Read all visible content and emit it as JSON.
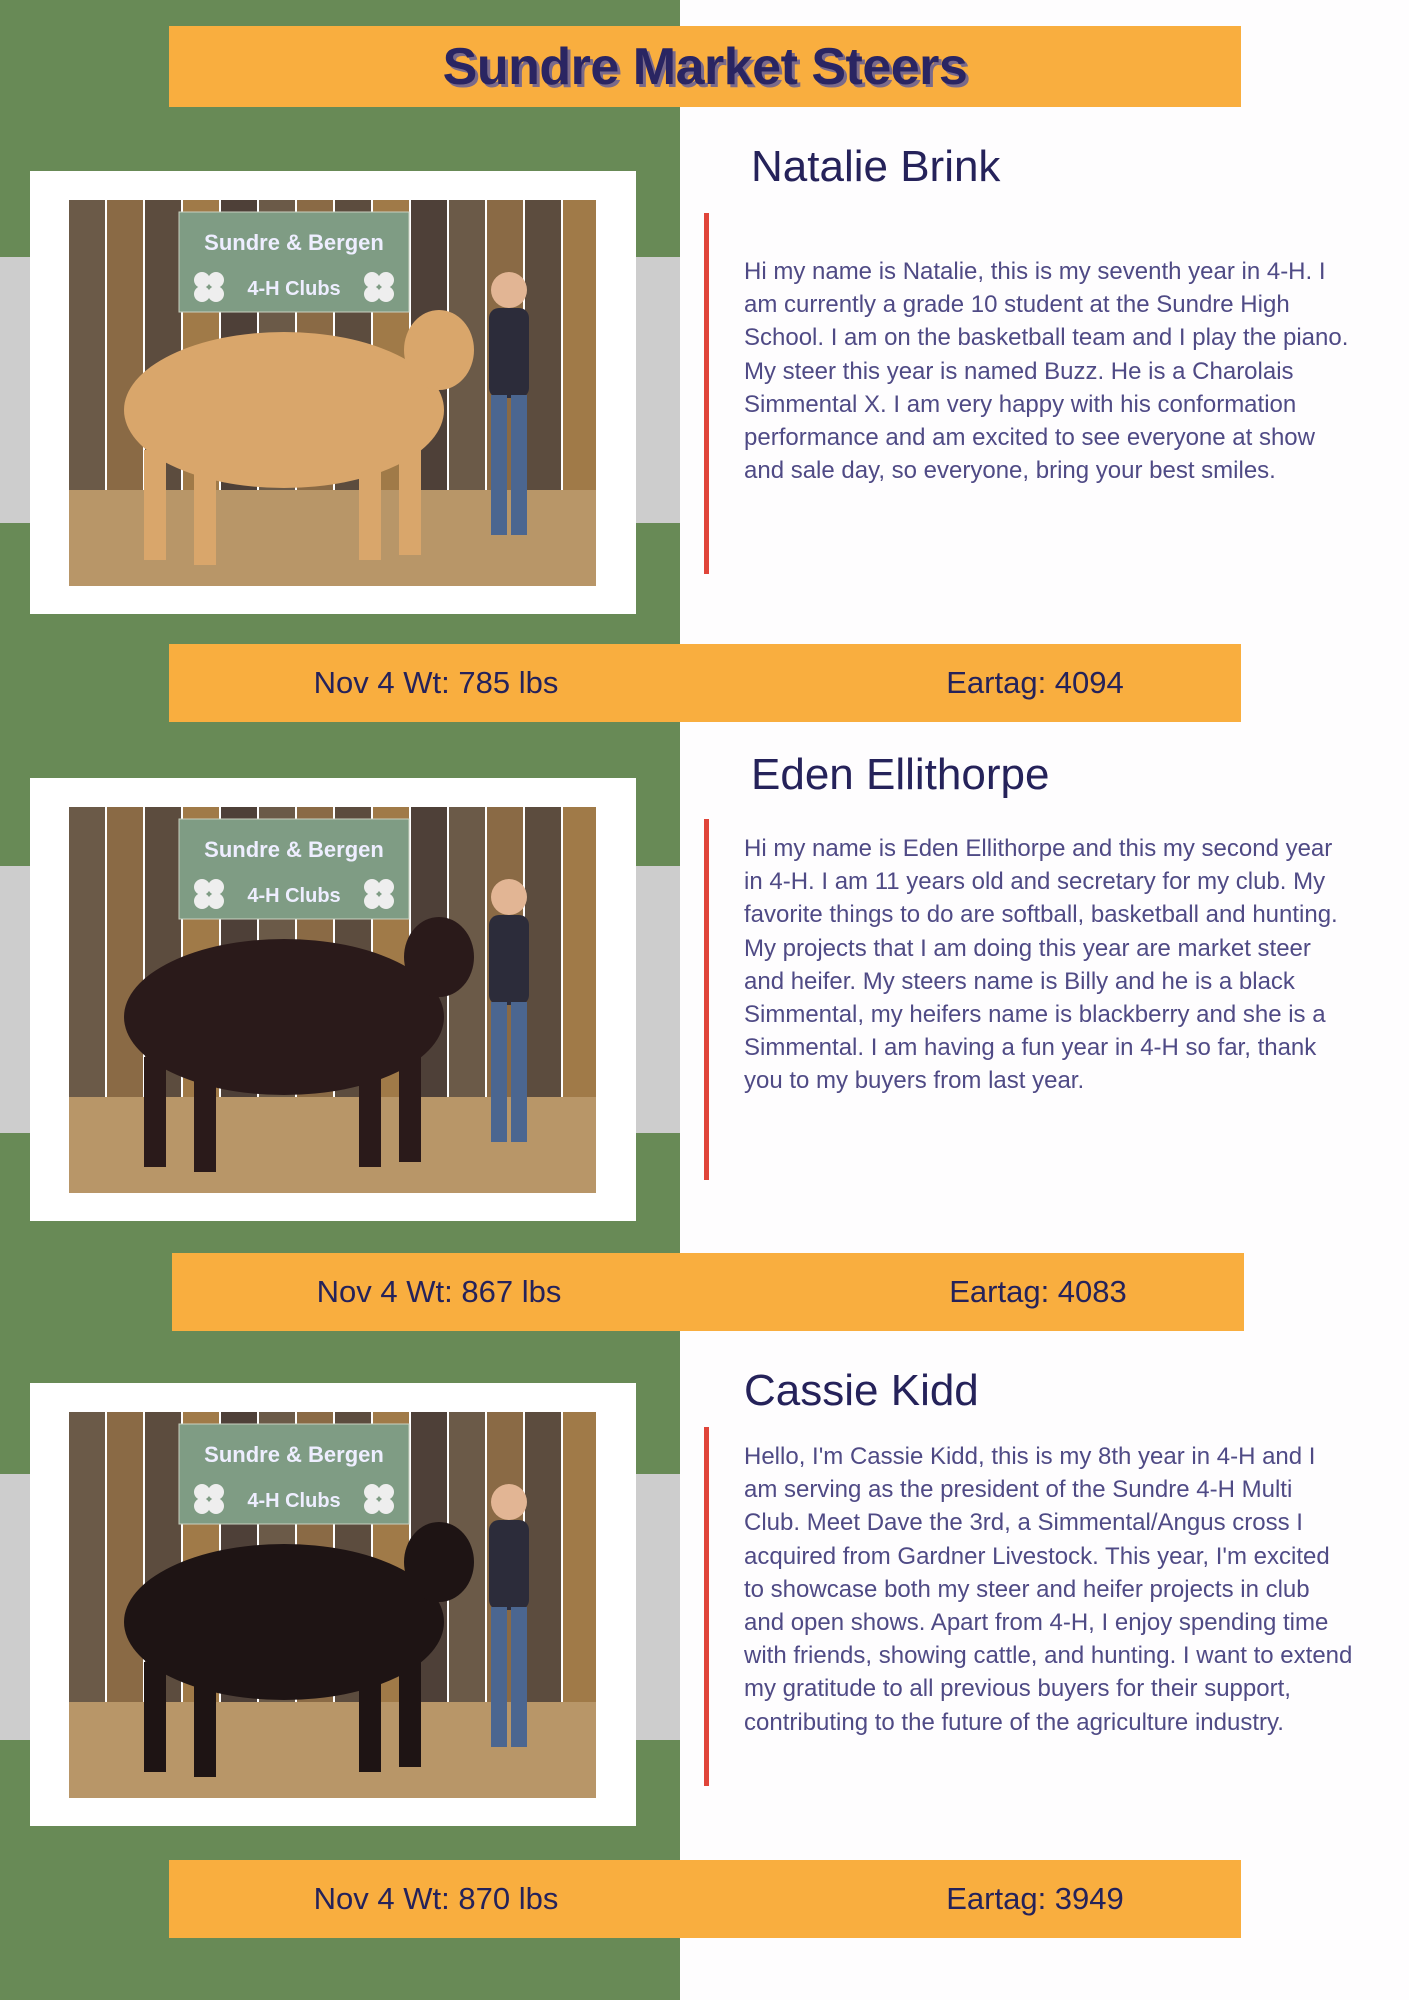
{
  "title": "Sundre Market Steers",
  "colors": {
    "green": "#688a56",
    "orange": "#f9ae3f",
    "navy": "#25225a",
    "red": "#e0453a",
    "gray": "#cdcdcd"
  },
  "members": [
    {
      "name": "Natalie Brink",
      "bio": "Hi my name is Natalie, this is my seventh year in 4-H. I am currently a grade 10 student at the Sundre High School. I am on the basketball team and I play the piano. My steer this year is named Buzz. He is a Charolais Simmental X. I am very happy with his conformation performance and am excited to see everyone at show and sale day, so everyone, bring your best smiles.",
      "weight": "Nov 4 Wt: 785 lbs",
      "eartag": "Eartag: 4094",
      "banner": [
        "Sundre & Bergen",
        "4-H Clubs"
      ],
      "steer_color": "#d9a66b"
    },
    {
      "name": "Eden Ellithorpe",
      "bio": "Hi my name is Eden Ellithorpe and this my second year in 4-H. I am 11 years old and secretary for my club. My favorite things to do are softball, basketball and hunting. My projects that I am doing this year are market steer and heifer. My steers name is Billy and he is a black Simmental, my heifers name is blackberry and she is a Simmental. I am having a fun year in 4-H so far, thank you to my buyers from last year.",
      "weight": "Nov 4 Wt: 867 lbs",
      "eartag": "Eartag: 4083",
      "banner": [
        "Sundre & Bergen",
        "4-H Clubs"
      ],
      "steer_color": "#2a1a1a"
    },
    {
      "name": "Cassie Kidd",
      "bio": "Hello, I'm Cassie Kidd, this is my 8th year in 4-H and I am serving as the president of the Sundre 4-H Multi Club. Meet Dave the 3rd, a Simmental/Angus cross I acquired from Gardner Livestock. This year, I'm excited to showcase both my steer and heifer projects in club and open shows. Apart from 4-H, I enjoy spending time with friends, showing cattle, and hunting. I want to extend my gratitude to all previous buyers for their support, contributing to the future of the agriculture industry.",
      "weight": "Nov 4 Wt: 870 lbs",
      "eartag": "Eartag: 3949",
      "banner": [
        "Sundre & Bergen",
        "4-H Clubs"
      ],
      "steer_color": "#1e1414"
    }
  ]
}
